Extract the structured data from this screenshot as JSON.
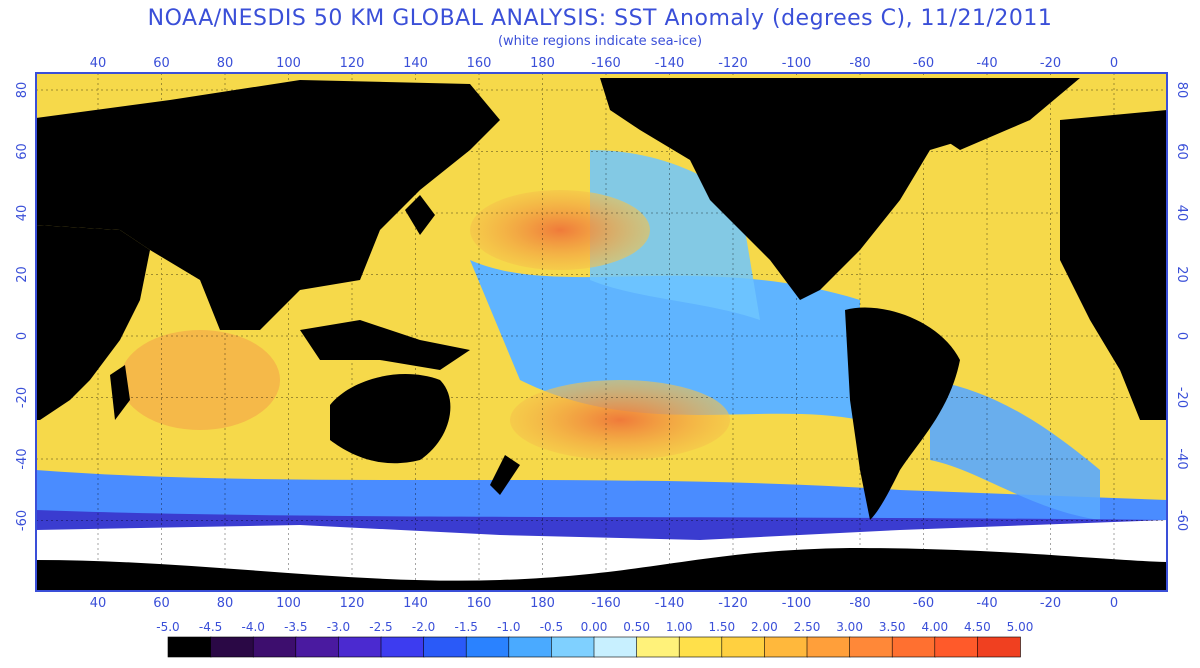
{
  "title": "NOAA/NESDIS 50 KM GLOBAL ANALYSIS: SST Anomaly (degrees C), 11/21/2011",
  "subtitle": "(white regions indicate sea-ice)",
  "map": {
    "lon_ticks": [
      "40",
      "60",
      "80",
      "100",
      "120",
      "140",
      "160",
      "180",
      "-160",
      "-140",
      "-120",
      "-100",
      "-80",
      "-60",
      "-40",
      "-20",
      "0"
    ],
    "lat_ticks": [
      "80",
      "60",
      "40",
      "20",
      "0",
      "-20",
      "-40",
      "-60"
    ],
    "colors": {
      "land": "#000000",
      "ice": "#ffffff",
      "frame": "#3a4fd8",
      "cold": "#3a7bff",
      "cool": "#5fb4ff",
      "neutral": "#7fdcf0",
      "warm": "#f8e24a",
      "hot": "#f5a84a",
      "hotter": "#ef6a3a"
    }
  },
  "colorbar": {
    "labels": [
      "-5.0",
      "-4.5",
      "-4.0",
      "-3.5",
      "-3.0",
      "-2.5",
      "-2.0",
      "-1.5",
      "-1.0",
      "-0.5",
      "0.00",
      "0.50",
      "1.00",
      "1.50",
      "2.00",
      "2.50",
      "3.00",
      "3.50",
      "4.00",
      "4.50",
      "5.00"
    ],
    "colors": [
      "#000000",
      "#2a0845",
      "#3d0e6e",
      "#4a1aa0",
      "#4b2ad0",
      "#3d3cf0",
      "#2a5af8",
      "#2a82ff",
      "#4aaaff",
      "#7fd0ff",
      "#c8f0ff",
      "#fff27a",
      "#ffe04a",
      "#ffd040",
      "#ffb83c",
      "#ff9f3a",
      "#ff8838",
      "#ff7030",
      "#ff5a2a",
      "#f04020"
    ]
  }
}
